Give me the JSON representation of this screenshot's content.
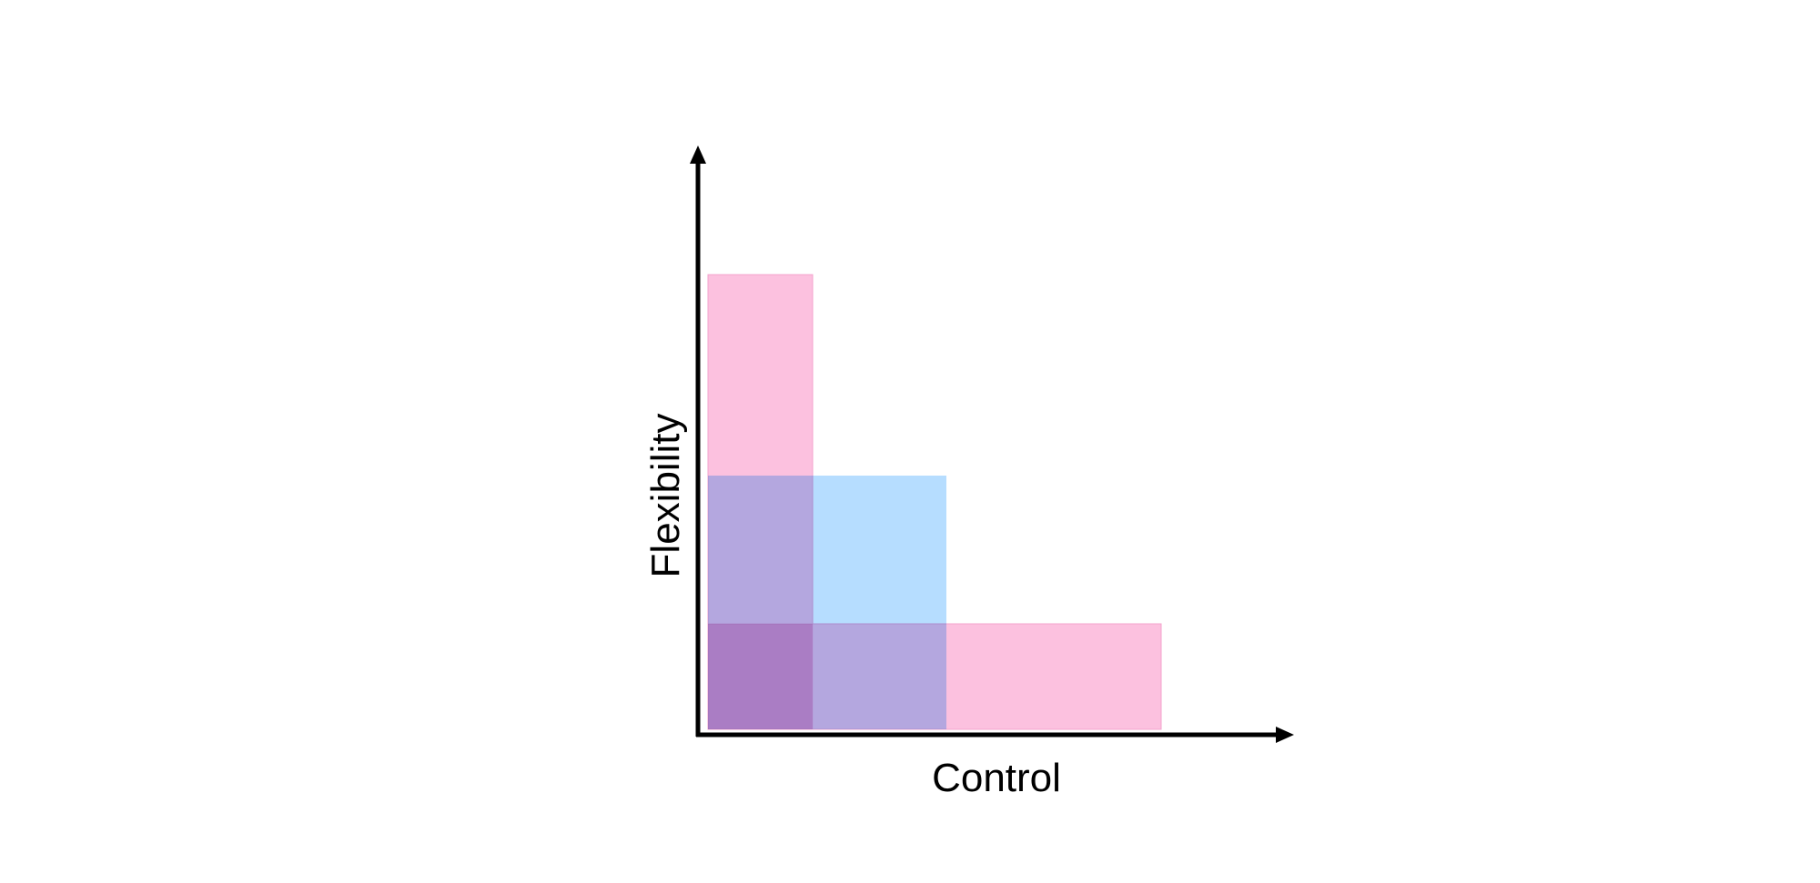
{
  "diagram": {
    "x_axis_label": "Control",
    "y_axis_label": "Flexibility",
    "colors": {
      "axis": "#000000",
      "pink": "#fbb6d9",
      "blue": "#a9d7ff",
      "background": "#ffffff"
    },
    "regions": [
      {
        "name": "pink-vertical-bar",
        "color": "pink"
      },
      {
        "name": "pink-horizontal-bar",
        "color": "pink"
      },
      {
        "name": "blue-square",
        "color": "blue"
      }
    ]
  }
}
